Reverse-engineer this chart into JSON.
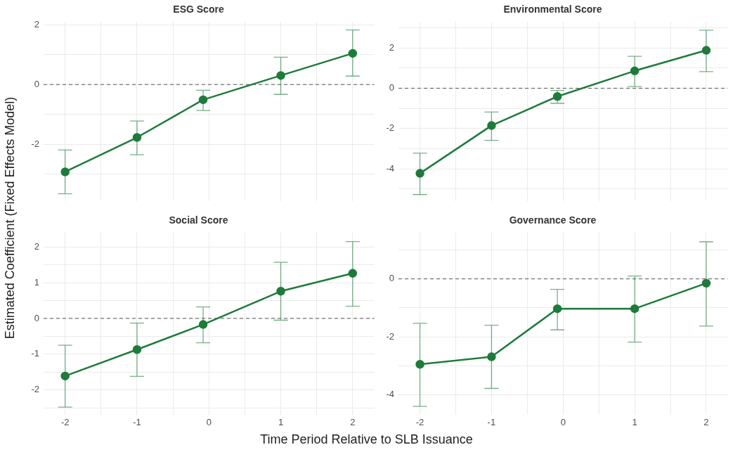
{
  "chart_data": [
    {
      "type": "line",
      "title": "ESG Score",
      "ylabel": "Estimated Coefficient (Fixed Effects Model)",
      "x": [
        -2,
        -1,
        -0.08,
        1,
        2
      ],
      "xlim": [
        -2.3,
        2.3
      ],
      "xticks": [
        -2,
        {
          "value": -1.5,
          "label": null
        },
        -1,
        {
          "value": -0.5,
          "label": null
        },
        0,
        {
          "value": 0.5,
          "label": null
        },
        1,
        {
          "value": 1.5,
          "label": null
        },
        2
      ],
      "ylim": [
        -3.9,
        2.1
      ],
      "yticks": [
        {
          "value": -3,
          "label": null
        },
        -2,
        {
          "value": -1,
          "label": null
        },
        0,
        {
          "value": 1,
          "label": null
        },
        2
      ],
      "tick_labels": "y",
      "grid": true,
      "marker": "circle",
      "line_style": "solid",
      "series": [
        {
          "color": "#1e7b3c",
          "values": [
            -2.92,
            -1.77,
            -0.51,
            0.3,
            1.04
          ],
          "errors": [
            [
              -3.65,
              -2.19
            ],
            [
              -2.35,
              -1.22
            ],
            [
              -0.87,
              -0.19
            ],
            [
              -0.33,
              0.91
            ],
            [
              0.28,
              1.82
            ]
          ]
        }
      ],
      "ref_lines": [
        {
          "axis": "y",
          "value": 0,
          "color": "#555555",
          "line_style": "dashed"
        }
      ]
    },
    {
      "type": "line",
      "title": "Environmental Score",
      "x": [
        -2,
        -1,
        -0.08,
        1,
        2
      ],
      "xlim": [
        -2.3,
        2.3
      ],
      "xticks": [
        -2,
        {
          "value": -1.5,
          "label": null
        },
        -1,
        {
          "value": -0.5,
          "label": null
        },
        0,
        {
          "value": 0.5,
          "label": null
        },
        1,
        {
          "value": 1.5,
          "label": null
        },
        2
      ],
      "ylim": [
        -5.6,
        3.3
      ],
      "yticks": [
        {
          "value": -5,
          "label": null
        },
        -4,
        {
          "value": -3,
          "label": null
        },
        -2,
        {
          "value": -1,
          "label": null
        },
        0,
        {
          "value": 1,
          "label": null
        },
        2,
        {
          "value": 3,
          "label": null
        }
      ],
      "tick_labels": "y",
      "grid": true,
      "marker": "circle",
      "line_style": "solid",
      "series": [
        {
          "color": "#1e7b3c",
          "values": [
            -4.22,
            -1.85,
            -0.41,
            0.86,
            1.88
          ],
          "errors": [
            [
              -5.27,
              -3.22
            ],
            [
              -2.58,
              -1.18
            ],
            [
              -0.75,
              -0.11
            ],
            [
              0.08,
              1.58
            ],
            [
              0.82,
              2.88
            ]
          ]
        }
      ],
      "ref_lines": [
        {
          "axis": "y",
          "value": 0,
          "color": "#555555",
          "line_style": "dashed"
        }
      ]
    },
    {
      "type": "line",
      "title": "Social Score",
      "xlabel": "Time Period Relative to SLB Issuance",
      "x": [
        -2,
        -1,
        -0.08,
        1,
        2
      ],
      "xlim": [
        -2.3,
        2.3
      ],
      "xticks": [
        -2,
        {
          "value": -1.5,
          "label": null
        },
        -1,
        {
          "value": -0.5,
          "label": null
        },
        0,
        {
          "value": 0.5,
          "label": null
        },
        1,
        {
          "value": 1.5,
          "label": null
        },
        2
      ],
      "ylim": [
        -2.7,
        2.4
      ],
      "yticks": [
        {
          "value": -2.5,
          "label": null
        },
        -2,
        {
          "value": -1.5,
          "label": null
        },
        -1,
        {
          "value": -0.5,
          "label": null
        },
        0,
        {
          "value": 0.5,
          "label": null
        },
        1,
        {
          "value": 1.5,
          "label": null
        },
        2
      ],
      "grid": true,
      "marker": "circle",
      "line_style": "solid",
      "series": [
        {
          "color": "#1e7b3c",
          "values": [
            -1.61,
            -0.87,
            -0.17,
            0.76,
            1.26
          ],
          "errors": [
            [
              -2.48,
              -0.75
            ],
            [
              -1.62,
              -0.13
            ],
            [
              -0.68,
              0.32
            ],
            [
              -0.05,
              1.57
            ],
            [
              0.34,
              2.15
            ]
          ]
        }
      ],
      "ref_lines": [
        {
          "axis": "y",
          "value": 0,
          "color": "#555555",
          "line_style": "dashed"
        }
      ]
    },
    {
      "type": "line",
      "title": "Governance Score",
      "x": [
        -2,
        -1,
        -0.08,
        1,
        2
      ],
      "xlim": [
        -2.3,
        2.3
      ],
      "xticks": [
        -2,
        {
          "value": -1.5,
          "label": null
        },
        -1,
        {
          "value": -0.5,
          "label": null
        },
        0,
        {
          "value": 0.5,
          "label": null
        },
        1,
        {
          "value": 1.5,
          "label": null
        },
        2
      ],
      "ylim": [
        -4.7,
        1.6
      ],
      "yticks": [
        -4,
        {
          "value": -3,
          "label": null
        },
        -2,
        {
          "value": -1,
          "label": null
        },
        0,
        {
          "value": 1,
          "label": null
        }
      ],
      "grid": true,
      "marker": "circle",
      "line_style": "solid",
      "series": [
        {
          "color": "#1e7b3c",
          "values": [
            -2.95,
            -2.69,
            -1.03,
            -1.03,
            -0.15
          ],
          "errors": [
            [
              -4.4,
              -1.53
            ],
            [
              -3.78,
              -1.6
            ],
            [
              -1.76,
              -0.36
            ],
            [
              -2.18,
              0.1
            ],
            [
              -1.63,
              1.28
            ]
          ]
        }
      ],
      "ref_lines": [
        {
          "axis": "y",
          "value": 0,
          "color": "#555555",
          "line_style": "dashed"
        }
      ]
    }
  ]
}
